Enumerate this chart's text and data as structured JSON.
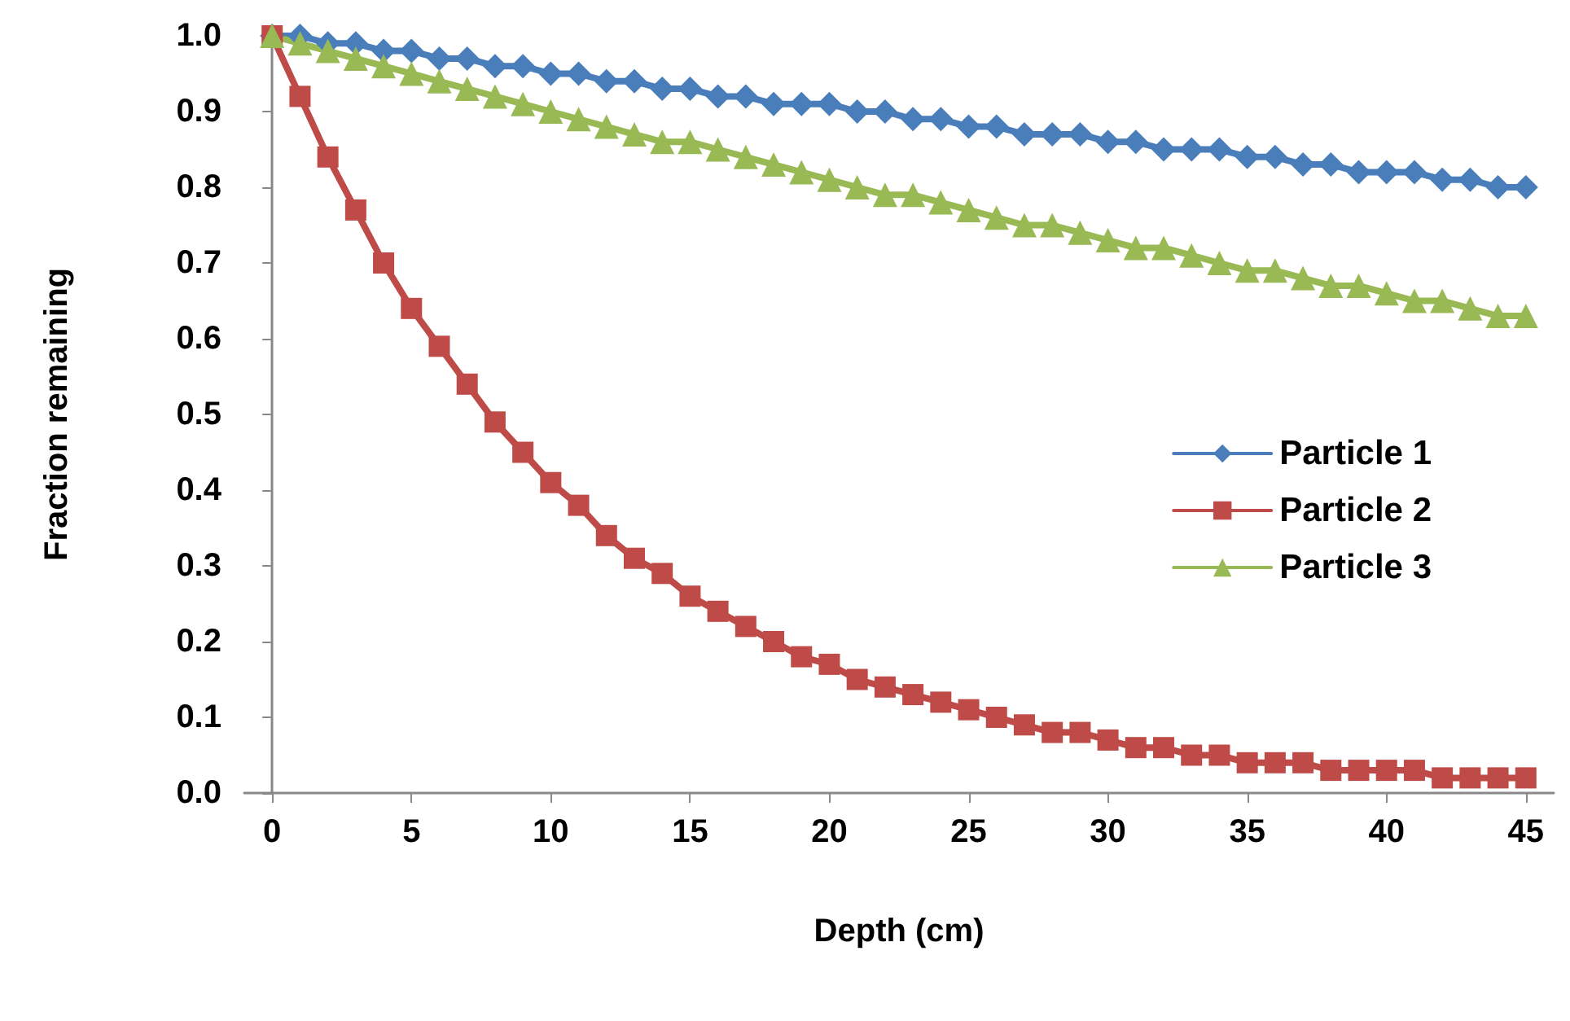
{
  "chart_data": {
    "type": "line",
    "xlabel": "Depth (cm)",
    "ylabel": "Fraction remaining",
    "x": [
      0,
      1,
      2,
      3,
      4,
      5,
      6,
      7,
      8,
      9,
      10,
      11,
      12,
      13,
      14,
      15,
      16,
      17,
      18,
      19,
      20,
      21,
      22,
      23,
      24,
      25,
      26,
      27,
      28,
      29,
      30,
      31,
      32,
      33,
      34,
      35,
      36,
      37,
      38,
      39,
      40,
      41,
      42,
      43,
      44,
      45
    ],
    "series": [
      {
        "name": "Particle 1",
        "color": "#4a7ebb",
        "marker": "diamond",
        "values": [
          1.0,
          1.0,
          0.99,
          0.99,
          0.98,
          0.98,
          0.97,
          0.97,
          0.96,
          0.96,
          0.95,
          0.95,
          0.94,
          0.94,
          0.93,
          0.93,
          0.92,
          0.92,
          0.91,
          0.91,
          0.91,
          0.9,
          0.9,
          0.89,
          0.89,
          0.88,
          0.88,
          0.87,
          0.87,
          0.87,
          0.86,
          0.86,
          0.85,
          0.85,
          0.85,
          0.84,
          0.84,
          0.83,
          0.83,
          0.82,
          0.82,
          0.82,
          0.81,
          0.81,
          0.8,
          0.8
        ]
      },
      {
        "name": "Particle 2",
        "color": "#be4b48",
        "marker": "square",
        "values": [
          1.0,
          0.92,
          0.84,
          0.77,
          0.7,
          0.64,
          0.59,
          0.54,
          0.49,
          0.45,
          0.41,
          0.38,
          0.34,
          0.31,
          0.29,
          0.26,
          0.24,
          0.22,
          0.2,
          0.18,
          0.17,
          0.15,
          0.14,
          0.13,
          0.12,
          0.11,
          0.1,
          0.09,
          0.08,
          0.08,
          0.07,
          0.06,
          0.06,
          0.05,
          0.05,
          0.04,
          0.04,
          0.04,
          0.03,
          0.03,
          0.03,
          0.03,
          0.02,
          0.02,
          0.02,
          0.02
        ]
      },
      {
        "name": "Particle 3",
        "color": "#98b954",
        "marker": "triangle",
        "values": [
          1.0,
          0.99,
          0.98,
          0.97,
          0.96,
          0.95,
          0.94,
          0.93,
          0.92,
          0.91,
          0.9,
          0.89,
          0.88,
          0.87,
          0.86,
          0.86,
          0.85,
          0.84,
          0.83,
          0.82,
          0.81,
          0.8,
          0.79,
          0.79,
          0.78,
          0.77,
          0.76,
          0.75,
          0.75,
          0.74,
          0.73,
          0.72,
          0.72,
          0.71,
          0.7,
          0.69,
          0.69,
          0.68,
          0.67,
          0.67,
          0.66,
          0.65,
          0.65,
          0.64,
          0.63,
          0.63
        ]
      }
    ],
    "xlim": [
      -1,
      46
    ],
    "xticks": [
      0,
      5,
      10,
      15,
      20,
      25,
      30,
      35,
      40,
      45
    ],
    "ylim": [
      0,
      1
    ],
    "yticks": [
      {
        "value": 0,
        "label": "0.0"
      },
      {
        "value": 0.1,
        "label": "0.1"
      },
      {
        "value": 0.2,
        "label": "0.2"
      },
      {
        "value": 0.3,
        "label": "0.3"
      },
      {
        "value": 0.4,
        "label": "0.4"
      },
      {
        "value": 0.5,
        "label": "0.5"
      },
      {
        "value": 0.6,
        "label": "0.6"
      },
      {
        "value": 0.7,
        "label": "0.7"
      },
      {
        "value": 0.8,
        "label": "0.8"
      },
      {
        "value": 0.9,
        "label": "0.9"
      },
      {
        "value": 1,
        "label": "1.0"
      }
    ],
    "grid": false,
    "legend": "right",
    "line_style": "solid"
  }
}
